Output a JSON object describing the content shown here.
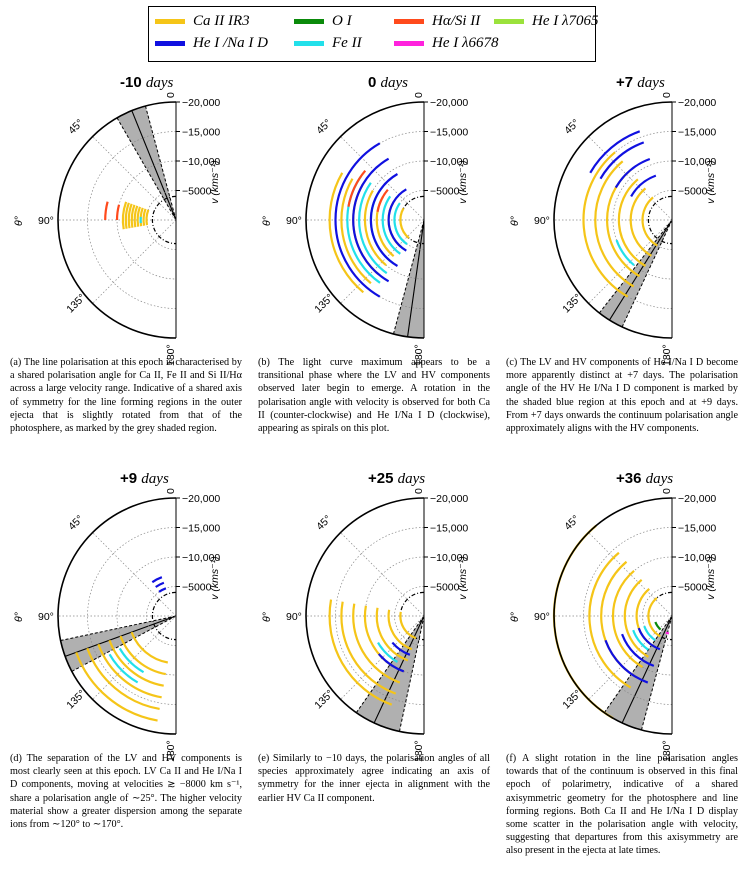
{
  "legend": [
    {
      "label": "Ca II IR3",
      "color": "#f5c518"
    },
    {
      "label": "O I",
      "color": "#0a8a0a"
    },
    {
      "label": "Hα/Si II",
      "color": "#ff4a1c"
    },
    {
      "label": "He I λ7065",
      "color": "#9be23c"
    },
    {
      "label": "He I /Na I D",
      "color": "#1010e0"
    },
    {
      "label": "Fe II",
      "color": "#22e0ea"
    },
    {
      "label": "He I λ6678",
      "color": "#ff22dd"
    }
  ],
  "axes": {
    "angle_ticks": [
      "0",
      "45°",
      "90°",
      "135°",
      "180°"
    ],
    "velocity_ticks": [
      "−20,000",
      "−15,000",
      "−10,000",
      "−5000"
    ],
    "theta_label": "θ°",
    "velocity_label": "v (kms⁻¹)"
  },
  "panels": [
    {
      "epoch_value": "-10",
      "epoch_unit": "days",
      "caption": "(a) The line polarisation at this epoch is characterised by a shared polarisation angle for Ca II, Fe II and Si II/Hα across a large velocity range. Indicative of a shared axis of symmetry for the line forming regions in the outer ejecta that is slightly rotated from that of the photosphere, as marked by the grey shaded region."
    },
    {
      "epoch_value": "0",
      "epoch_unit": "days",
      "caption": "(b) The light curve maximum appears to be a transitional phase where the LV and HV components observed later begin to emerge. A rotation in the polarisation angle with velocity is observed for both Ca II (counter-clockwise) and He I/Na I D (clockwise), appearing as spirals on this plot."
    },
    {
      "epoch_value": "+7",
      "epoch_unit": "days",
      "caption": "(c) The LV and HV components of He I/Na I D become more apparently distinct at +7 days. The polarisation angle of the HV He I/Na I D component is marked by the shaded blue region at this epoch and at +9 days. From +7 days onwards the continuum polarisation angle approximately aligns with the HV components."
    },
    {
      "epoch_value": "+9",
      "epoch_unit": "days",
      "caption": "(d) The separation of the LV and HV components is most clearly seen at this epoch. LV Ca II and He I/Na I D components, moving at velocities ≳ −8000 km s⁻¹, share a polarisation angle of ∼25°. The higher velocity material show a greater dispersion among the separate ions from ∼120° to ∼170°."
    },
    {
      "epoch_value": "+25",
      "epoch_unit": "days",
      "caption": "(e) Similarly to −10 days, the polarisation angles of all species approximately agree indicating an axis of symmetry for the inner ejecta in alignment with the earlier HV Ca II component."
    },
    {
      "epoch_value": "+36",
      "epoch_unit": "days",
      "caption": "(f) A slight rotation in the line polarisation angles towards that of the continuum is observed in this final epoch of polarimetry, indicative of a shared axisymmetric geometry for the photosphere and line forming regions. Both Ca II and He I/Na I D display some scatter in the polarisation angle with velocity, suggesting that departures from this axisymmetry are also present in the ejecta at late times."
    }
  ],
  "chart_data": [
    {
      "type": "polar",
      "panel": "a",
      "epoch": "-10 days",
      "theta_range": [
        0,
        180
      ],
      "r_range": [
        0,
        -20000
      ],
      "continuum": {
        "angle": 22,
        "range": [
          15,
          30
        ]
      },
      "arcs": [
        {
          "series": "Ca II IR3",
          "r": [
            -5000,
            -5500,
            -6000,
            -6500,
            -7000,
            -7500,
            -8000,
            -8500,
            -9000
          ],
          "theta": [
            70,
            100
          ]
        },
        {
          "series": "Fe II",
          "r": [
            -6000
          ],
          "theta": [
            85,
            95
          ]
        },
        {
          "series": "Hα/Si II",
          "r": [
            -10000,
            -12000
          ],
          "theta": [
            75,
            90
          ]
        }
      ]
    },
    {
      "type": "polar",
      "panel": "b",
      "epoch": "0 days",
      "theta_range": [
        0,
        180
      ],
      "r_range": [
        0,
        -20000
      ],
      "continuum": {
        "angle": 172,
        "range": [
          165,
          180
        ]
      },
      "arcs": [
        {
          "series": "Ca II IR3",
          "r": [
            -4000,
            -6000,
            -8000,
            -10000,
            -12000,
            -14000,
            -16000
          ],
          "theta": [
            60,
            140
          ]
        },
        {
          "series": "Fe II",
          "r": [
            -5000,
            -7000,
            -9000,
            -11000,
            -13000
          ],
          "theta": [
            55,
            145
          ]
        },
        {
          "series": "He I /Na I D",
          "r": [
            -6000,
            -9000,
            -12000,
            -15000
          ],
          "theta": [
            30,
            150
          ]
        },
        {
          "series": "Hα/Si II",
          "r": [
            -8000,
            -13000
          ],
          "theta": [
            50,
            80
          ]
        }
      ]
    },
    {
      "type": "polar",
      "panel": "c",
      "epoch": "+7 days",
      "theta_range": [
        0,
        180
      ],
      "r_range": [
        0,
        -20000
      ],
      "continuum": {
        "angle": 148,
        "range": [
          142,
          155
        ]
      },
      "arcs": [
        {
          "series": "Ca II IR3",
          "r": [
            -5000,
            -7000,
            -9000,
            -11000,
            -13000,
            -15000
          ],
          "theta": [
            40,
            150
          ]
        },
        {
          "series": "He I /Na I D",
          "r": [
            -8000,
            -11000,
            -14000,
            -16000
          ],
          "theta": [
            20,
            60
          ]
        },
        {
          "series": "Fe II",
          "r": [
            -10000
          ],
          "theta": [
            110,
            140
          ]
        }
      ]
    },
    {
      "type": "polar",
      "panel": "d",
      "epoch": "+9 days",
      "theta_range": [
        0,
        180
      ],
      "r_range": [
        0,
        -20000
      ],
      "continuum": {
        "angle": 110,
        "range": [
          102,
          118
        ]
      },
      "arcs": [
        {
          "series": "Ca II IR3",
          "r": [
            -8000,
            -10000,
            -12000,
            -14000,
            -16000,
            -18000
          ],
          "theta": [
            110,
            170
          ]
        },
        {
          "series": "He I /Na I D",
          "r": [
            -5000,
            -6000,
            -7000
          ],
          "theta": [
            20,
            35
          ]
        },
        {
          "series": "Fe II",
          "r": [
            -11000,
            -13000
          ],
          "theta": [
            120,
            150
          ]
        }
      ]
    },
    {
      "type": "polar",
      "panel": "e",
      "epoch": "+25 days",
      "theta_range": [
        0,
        180
      ],
      "r_range": [
        0,
        -20000
      ],
      "continuum": {
        "angle": 155,
        "range": [
          145,
          168
        ]
      },
      "arcs": [
        {
          "series": "Ca II IR3",
          "r": [
            -4000,
            -6000,
            -8000,
            -10000,
            -12000,
            -14000,
            -16000
          ],
          "theta": [
            80,
            160
          ]
        },
        {
          "series": "He I /Na I D",
          "r": [
            -7000,
            -10000
          ],
          "theta": [
            130,
            160
          ]
        },
        {
          "series": "Fe II",
          "r": [
            -9000
          ],
          "theta": [
            120,
            150
          ]
        }
      ]
    },
    {
      "type": "polar",
      "panel": "f",
      "epoch": "+36 days",
      "theta_range": [
        0,
        180
      ],
      "r_range": [
        0,
        -20000
      ],
      "continuum": {
        "angle": 155,
        "range": [
          145,
          165
        ]
      },
      "arcs": [
        {
          "series": "Ca II IR3",
          "r": [
            -4000,
            -6000,
            -8000,
            -10000,
            -12000,
            -14000,
            -20000
          ],
          "theta": [
            40,
            150
          ]
        },
        {
          "series": "He I /Na I D",
          "r": [
            -6000,
            -9000,
            -12000
          ],
          "theta": [
            110,
            160
          ]
        },
        {
          "series": "Fe II",
          "r": [
            -5000,
            -7000
          ],
          "theta": [
            110,
            145
          ]
        },
        {
          "series": "O I",
          "r": [
            -3000
          ],
          "theta": [
            110,
            140
          ]
        },
        {
          "series": "He I λ6678",
          "r": [
            -3000
          ],
          "theta": [
            160,
            170
          ]
        }
      ]
    }
  ]
}
